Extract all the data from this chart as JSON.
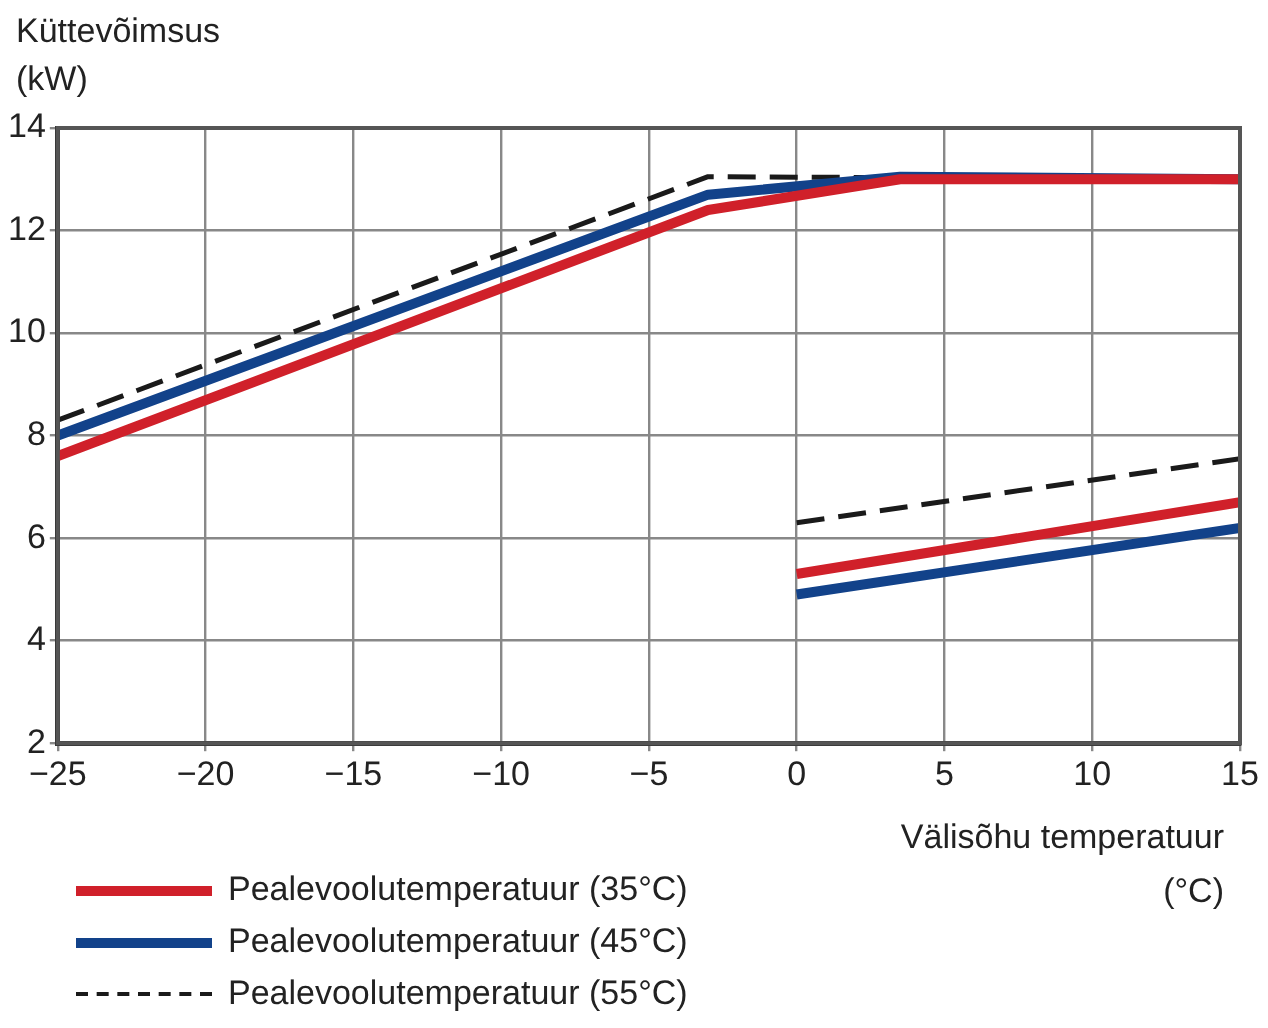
{
  "chart_data": {
    "type": "line",
    "ylabel": "Küttevõimsus\n(kW)",
    "xlabel": "Välisõhu temperatuur\n(°C)",
    "xlim": [
      -25,
      15
    ],
    "xticks": [
      -25,
      -20,
      -15,
      -10,
      -5,
      0,
      5,
      10,
      15
    ],
    "ylim": [
      2,
      14
    ],
    "yticks": [
      2,
      4,
      6,
      8,
      10,
      12,
      14
    ],
    "grid": true,
    "legend": "bottom left",
    "marker": "none",
    "series": [
      {
        "name": "Pealevoolutemperatuur (35°C)",
        "color": "#d0202a",
        "line_style": "solid",
        "x": [
          -25,
          -3,
          3.5,
          15,
          null,
          0,
          15
        ],
        "values": [
          7.6,
          12.4,
          13,
          13,
          null,
          5.3,
          6.7
        ]
      },
      {
        "name": "Pealevoolutemperatuur (45°C)",
        "color": "#12428a",
        "line_style": "solid",
        "x": [
          -25,
          -3,
          3.5,
          15,
          null,
          0,
          15
        ],
        "values": [
          8.0,
          12.7,
          13.05,
          13,
          null,
          4.9,
          6.2
        ]
      },
      {
        "name": "Pealevoolutemperatuur (55°C)",
        "color": "#1a1a1a",
        "line_style": "dashed",
        "x": [
          -25,
          -3,
          15,
          null,
          0,
          15
        ],
        "values": [
          8.3,
          13.05,
          13,
          null,
          6.3,
          7.55
        ]
      }
    ]
  }
}
